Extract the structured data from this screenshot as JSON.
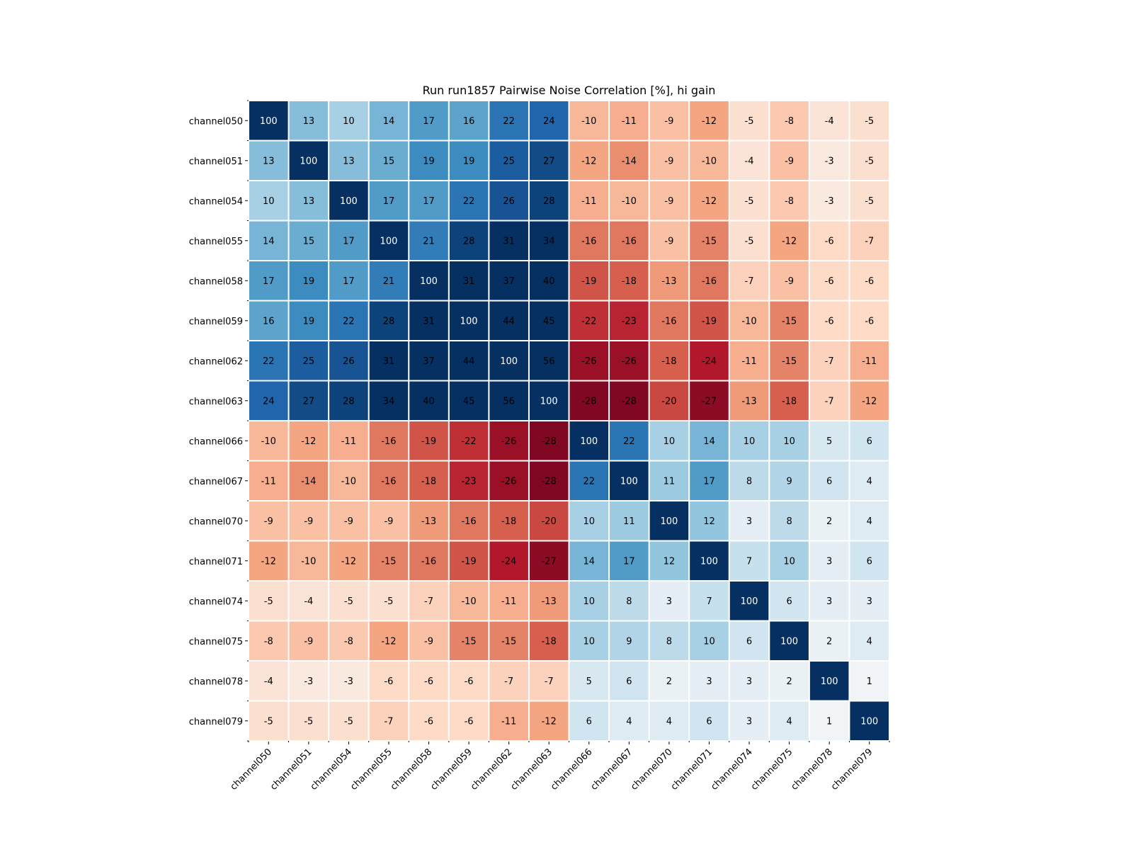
{
  "chart_data": {
    "type": "heatmap",
    "title": "Run run1857 Pairwise Noise Correlation [%], hi gain",
    "xlabel": "",
    "ylabel": "",
    "colormap": "RdBu",
    "color_range": [
      -30,
      30
    ],
    "grid": false,
    "legend": "none",
    "x_tick_labels": [
      "channel050",
      "channel051",
      "channel054",
      "channel055",
      "channel058",
      "channel059",
      "channel062",
      "channel063",
      "channel066",
      "channel067",
      "channel070",
      "channel071",
      "channel074",
      "channel075",
      "channel078",
      "channel079"
    ],
    "y_tick_labels": [
      "channel050",
      "channel051",
      "channel054",
      "channel055",
      "channel058",
      "channel059",
      "channel062",
      "channel063",
      "channel066",
      "channel067",
      "channel070",
      "channel071",
      "channel074",
      "channel075",
      "channel078",
      "channel079"
    ],
    "values": [
      [
        100,
        13,
        10,
        14,
        17,
        16,
        22,
        24,
        -10,
        -11,
        -9,
        -12,
        -5,
        -8,
        -4,
        -5
      ],
      [
        13,
        100,
        13,
        15,
        19,
        19,
        25,
        27,
        -12,
        -14,
        -9,
        -10,
        -4,
        -9,
        -3,
        -5
      ],
      [
        10,
        13,
        100,
        17,
        17,
        22,
        26,
        28,
        -11,
        -10,
        -9,
        -12,
        -5,
        -8,
        -3,
        -5
      ],
      [
        14,
        15,
        17,
        100,
        21,
        28,
        31,
        34,
        -16,
        -16,
        -9,
        -15,
        -5,
        -12,
        -6,
        -7
      ],
      [
        17,
        19,
        17,
        21,
        100,
        31,
        37,
        40,
        -19,
        -18,
        -13,
        -16,
        -7,
        -9,
        -6,
        -6
      ],
      [
        16,
        19,
        22,
        28,
        31,
        100,
        44,
        45,
        -22,
        -23,
        -16,
        -19,
        -10,
        -15,
        -6,
        -6
      ],
      [
        22,
        25,
        26,
        31,
        37,
        44,
        100,
        56,
        -26,
        -26,
        -18,
        -24,
        -11,
        -15,
        -7,
        -11
      ],
      [
        24,
        27,
        28,
        34,
        40,
        45,
        56,
        100,
        -28,
        -28,
        -20,
        -27,
        -13,
        -18,
        -7,
        -12
      ],
      [
        -10,
        -12,
        -11,
        -16,
        -19,
        -22,
        -26,
        -28,
        100,
        22,
        10,
        14,
        10,
        10,
        5,
        6
      ],
      [
        -11,
        -14,
        -10,
        -16,
        -18,
        -23,
        -26,
        -28,
        22,
        100,
        11,
        17,
        8,
        9,
        6,
        4
      ],
      [
        -9,
        -9,
        -9,
        -9,
        -13,
        -16,
        -18,
        -20,
        10,
        11,
        100,
        12,
        3,
        8,
        2,
        4
      ],
      [
        -12,
        -10,
        -12,
        -15,
        -16,
        -19,
        -24,
        -27,
        14,
        17,
        12,
        100,
        7,
        10,
        3,
        6
      ],
      [
        -5,
        -4,
        -5,
        -5,
        -7,
        -10,
        -11,
        -13,
        10,
        8,
        3,
        7,
        100,
        6,
        3,
        3
      ],
      [
        -8,
        -9,
        -8,
        -12,
        -9,
        -15,
        -15,
        -18,
        10,
        9,
        8,
        10,
        6,
        100,
        2,
        4
      ],
      [
        -4,
        -3,
        -3,
        -6,
        -6,
        -6,
        -7,
        -7,
        5,
        6,
        2,
        3,
        3,
        2,
        100,
        1
      ],
      [
        -5,
        -5,
        -5,
        -7,
        -6,
        -6,
        -11,
        -12,
        6,
        4,
        4,
        6,
        3,
        4,
        1,
        100
      ]
    ]
  }
}
